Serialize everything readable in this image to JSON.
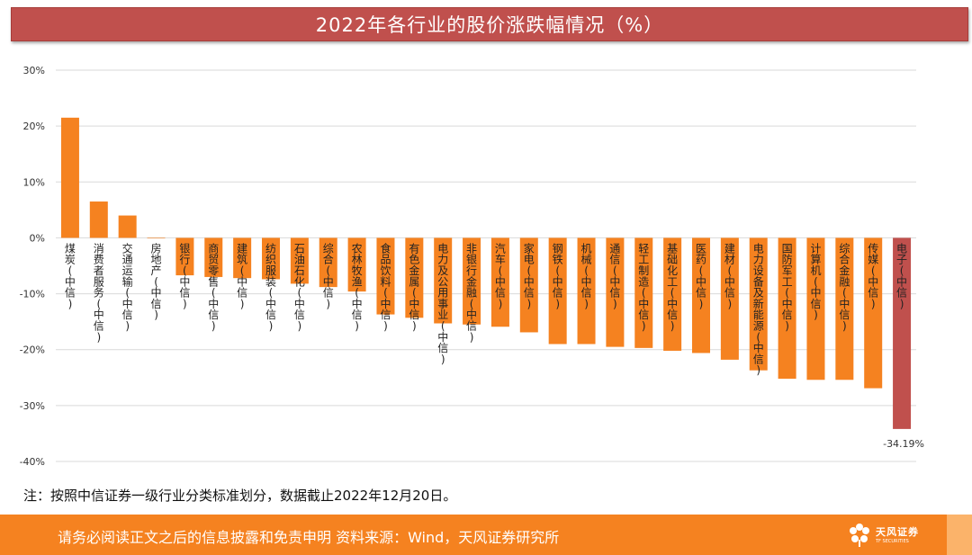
{
  "title": "2022年各行业的股价涨跌幅情况（%）",
  "note": "注：按照中信证券一级行业分类标准划分，数据截止2022年12月20日。",
  "footer": {
    "disclaimer": "请务必阅读正文之后的信息披露和免责申明   资料来源：Wind，天风证券研究所",
    "logo_cn": "天风证券",
    "logo_en": "TF SECURITIES"
  },
  "colors": {
    "bar": "#f58220",
    "highlight": "#c0504d",
    "header": "#c0504d",
    "footer": "#f58220"
  },
  "chart_data": {
    "type": "bar",
    "title": "2022年各行业的股价涨跌幅情况（%）",
    "categories": [
      "煤炭(中信)",
      "消费者服务(中信)",
      "交通运输(中信)",
      "房地产(中信)",
      "银行(中信)",
      "商贸零售(中信)",
      "建筑(中信)",
      "纺织服装(中信)",
      "石油石化(中信)",
      "综合(中信)",
      "农林牧渔(中信)",
      "食品饮料(中信)",
      "有色金属(中信)",
      "电力及公用事业(中信)",
      "非银行金融(中信)",
      "汽车(中信)",
      "家电(中信)",
      "钢铁(中信)",
      "机械(中信)",
      "通信(中信)",
      "轻工制造(中信)",
      "基础化工(中信)",
      "医药(中信)",
      "建材(中信)",
      "电力设备及新能源(中信)",
      "国防军工(中信)",
      "计算机(中信)",
      "综合金融(中信)",
      "传媒(中信)",
      "电子(中信)"
    ],
    "values": [
      21.5,
      6.5,
      4.0,
      -0.1,
      -6.7,
      -7.0,
      -7.2,
      -7.4,
      -8.2,
      -8.8,
      -9.6,
      -13.7,
      -14.3,
      -15.3,
      -15.5,
      -15.9,
      -16.9,
      -19.0,
      -19.0,
      -19.5,
      -19.7,
      -20.2,
      -20.6,
      -21.8,
      -23.7,
      -25.2,
      -25.4,
      -25.4,
      -26.9,
      -34.19
    ],
    "ylim": [
      -40,
      30
    ],
    "yticks": [
      30,
      20,
      10,
      0,
      -10,
      -20,
      -30,
      -40
    ],
    "ytick_labels": [
      "30%",
      "20%",
      "10%",
      "0%",
      "-10%",
      "-20%",
      "-30%",
      "-40%"
    ],
    "data_labels": [
      {
        "category": "电子(中信)",
        "text": "-34.19%"
      }
    ],
    "highlight_category": "电子(中信)",
    "grid": true,
    "legend": false
  }
}
